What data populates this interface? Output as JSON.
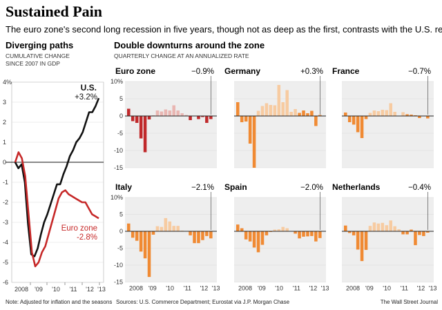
{
  "header": {
    "title": "Sustained Pain",
    "subtitle": "The euro zone's second long recession in five years, though not as deep as the first, contrasts with the U.S. recovery."
  },
  "footer": {
    "note": "Note: Adjusted for inflation and the seasons",
    "sources": "Sources: U.S. Commerce Department; Eurostat via J.P. Morgan Chase",
    "credit": "The Wall Street Journal"
  },
  "colors": {
    "us_line": "#111111",
    "euro_line": "#c62828",
    "euro_bar_dark": "#c0292b",
    "euro_bar_light": "#e9b6b2",
    "orange_dark": "#f08a33",
    "orange_light": "#f7cba1",
    "panel_bg": "#eeeeee",
    "grid": "#cccccc"
  },
  "chart_data": [
    {
      "type": "line",
      "title": "Diverging paths",
      "subtitle_lines": [
        "CUMULATIVE CHANGE",
        "SINCE 2007 IN GDP"
      ],
      "ylim": [
        -6,
        4
      ],
      "yticks": [
        "4%",
        "3",
        "2",
        "1",
        "0",
        "-1",
        "-2",
        "-3",
        "-4",
        "-5",
        "-6"
      ],
      "xticks": [
        "2008",
        "'09",
        "'10",
        "'11",
        "'12",
        "'13"
      ],
      "series": [
        {
          "name": "U.S.",
          "end_label": "+3.2%",
          "values": [
            0,
            -0.3,
            -0.1,
            -1.0,
            -3.1,
            -4.6,
            -4.7,
            -4.3,
            -3.6,
            -3.0,
            -2.6,
            -2.1,
            -1.6,
            -1.1,
            -1.1,
            -0.6,
            -0.2,
            0.3,
            0.6,
            1.0,
            1.2,
            1.5,
            2.0,
            2.5,
            2.5,
            2.8,
            3.2
          ]
        },
        {
          "name": "Euro zone",
          "end_label": "-2.8%",
          "values": [
            0,
            0.5,
            0.2,
            -0.7,
            -2.6,
            -4.5,
            -5.2,
            -5.0,
            -4.5,
            -4.2,
            -3.6,
            -3.0,
            -2.4,
            -1.8,
            -1.5,
            -1.4,
            -1.6,
            -1.7,
            -1.8,
            -1.9,
            -2.0,
            -2.0,
            -2.3,
            -2.6,
            -2.7,
            -2.8
          ]
        }
      ]
    },
    {
      "type": "bar",
      "title": "Double downturns around the zone",
      "subtitle": "QUARTERLY CHANGE AT AN ANNUALIZED RATE",
      "ylim": [
        -15,
        10
      ],
      "yticks": [
        "10%",
        "5",
        "0",
        "-5",
        "-10",
        "-15"
      ],
      "xticks": [
        "2008",
        "'09",
        "'10",
        "'11",
        "'12",
        "'13"
      ],
      "panels": [
        {
          "name": "Euro zone",
          "latest": "−0.9%",
          "color": "red",
          "values": [
            2.1,
            -1.5,
            -2.0,
            -6.5,
            -10.5,
            -1.0,
            0.2,
            1.6,
            1.3,
            1.9,
            1.6,
            3.1,
            1.6,
            0.8,
            0.3,
            -1.2,
            0.1,
            -0.9,
            -0.3,
            -2.0,
            -0.9
          ]
        },
        {
          "name": "Germany",
          "latest": "+0.3%",
          "color": "orange",
          "values": [
            4.0,
            -1.8,
            -1.6,
            -8.0,
            -15.0,
            1.5,
            2.9,
            3.7,
            3.2,
            3.1,
            9.0,
            4.0,
            7.5,
            1.2,
            2.0,
            0.9,
            1.6,
            0.8,
            1.5,
            -2.9,
            0.3
          ]
        },
        {
          "name": "France",
          "latest": "−0.7%",
          "color": "orange",
          "values": [
            1.0,
            -1.8,
            -2.5,
            -4.7,
            -6.4,
            -0.9,
            0.9,
            1.6,
            1.4,
            1.8,
            1.7,
            3.7,
            1.2,
            0.1,
            1.1,
            0.5,
            0.4,
            0.2,
            -0.6,
            0.1,
            -0.7
          ]
        },
        {
          "name": "Italy",
          "latest": "−2.1%",
          "color": "orange",
          "values": [
            2.3,
            -1.9,
            -2.8,
            -6.0,
            -8.0,
            -13.5,
            -1.0,
            1.5,
            1.3,
            3.9,
            2.9,
            1.6,
            1.6,
            0.2,
            0.1,
            -1.2,
            -3.5,
            -3.5,
            -2.6,
            -1.4,
            -2.1
          ]
        },
        {
          "name": "Spain",
          "latest": "−2.0%",
          "color": "orange",
          "values": [
            2.0,
            0.9,
            -2.4,
            -3.0,
            -4.8,
            -6.2,
            -4.0,
            -1.2,
            -0.2,
            0.5,
            0.6,
            1.3,
            0.9,
            0.1,
            -0.7,
            -2.1,
            -1.6,
            -1.5,
            -1.4,
            -3.0,
            -2.0
          ]
        },
        {
          "name": "Netherlands",
          "latest": "−0.4%",
          "color": "orange",
          "values": [
            1.7,
            -0.5,
            -1.2,
            -5.4,
            -8.8,
            -5.5,
            1.6,
            2.6,
            2.3,
            2.5,
            1.8,
            3.2,
            1.5,
            0.6,
            -0.9,
            -0.9,
            0.5,
            -4.1,
            -1.1,
            -1.4,
            -0.4
          ]
        }
      ]
    }
  ]
}
